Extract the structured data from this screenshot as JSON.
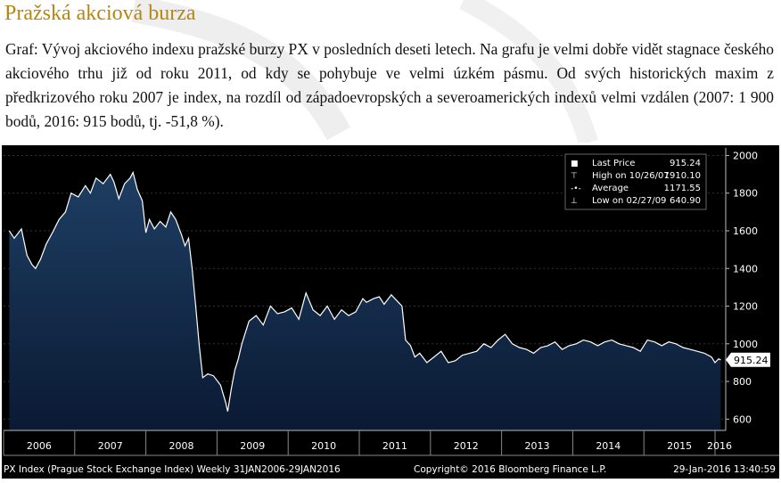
{
  "header": {
    "title": "Pražská akciová burza",
    "description": "Graf: Vývoj akciového indexu pražské burzy PX v posledních deseti letech. Na grafu je velmi dobře vidět stagnace českého akciového trhu již od roku 2011, od kdy se pohybuje ve velmi úzkém pásmu. Od svých historických maxim z předkrizového roku 2007 je index, na rozdíl od západoevropských a severoamerických indexů velmi vzdálen (2007: 1 900 bodů, 2016: 915 bodů, tj. -51,8 %)."
  },
  "footer": {
    "left": "PX Index (Prague Stock Exchange Index)  Weekly 31JAN2006-29JAN2016",
    "center": "Copyright© 2016 Bloomberg Finance L.P.",
    "right": "29-Jan-2016 13:40:59"
  },
  "colors": {
    "background": "#000000",
    "area_top": "#1e3e63",
    "area_bottom": "#0a1a33",
    "line": "#ffffff",
    "title": "#b8860b"
  },
  "chart_data": {
    "type": "area",
    "x_ticks": [
      "2006",
      "2007",
      "2008",
      "2009",
      "2010",
      "2011",
      "2012",
      "2013",
      "2014",
      "2015",
      "2016"
    ],
    "y_ticks": [
      600,
      800,
      1000,
      1200,
      1400,
      1600,
      1800,
      2000
    ],
    "ylim": [
      540,
      2040
    ],
    "last_value_label": "915.24",
    "legend": [
      {
        "label": "Last Price",
        "value": "915.24"
      },
      {
        "label": "High on 10/26/07",
        "value": "1910.10"
      },
      {
        "label": "Average",
        "value": "1171.55"
      },
      {
        "label": "Low on 02/27/09",
        "value": "640.90"
      }
    ],
    "series": [
      {
        "x": [
          2006.08,
          2006.15,
          2006.25,
          2006.33,
          2006.4,
          2006.45,
          2006.52,
          2006.6,
          2006.7,
          2006.78,
          2006.87,
          2006.95,
          2007.05,
          2007.15,
          2007.22,
          2007.3,
          2007.4,
          2007.5,
          2007.55,
          2007.62,
          2007.7,
          2007.78,
          2007.82,
          2007.88,
          2007.95,
          2008.0,
          2008.05,
          2008.12,
          2008.2,
          2008.28,
          2008.35,
          2008.42,
          2008.5,
          2008.55,
          2008.6,
          2008.65,
          2008.7,
          2008.75,
          2008.8,
          2008.87,
          2008.95,
          2009.05,
          2009.12,
          2009.15,
          2009.2,
          2009.25,
          2009.3,
          2009.35,
          2009.45,
          2009.55,
          2009.65,
          2009.75,
          2009.85,
          2009.95,
          2010.05,
          2010.15,
          2010.25,
          2010.35,
          2010.45,
          2010.55,
          2010.65,
          2010.75,
          2010.85,
          2010.95,
          2011.05,
          2011.1,
          2011.15,
          2011.2,
          2011.28,
          2011.35,
          2011.45,
          2011.55,
          2011.6,
          2011.65,
          2011.72,
          2011.78,
          2011.85,
          2011.95,
          2012.05,
          2012.15,
          2012.25,
          2012.35,
          2012.45,
          2012.55,
          2012.65,
          2012.75,
          2012.85,
          2012.95,
          2013.05,
          2013.15,
          2013.25,
          2013.35,
          2013.45,
          2013.55,
          2013.65,
          2013.75,
          2013.85,
          2013.95,
          2014.05,
          2014.15,
          2014.25,
          2014.35,
          2014.45,
          2014.55,
          2014.65,
          2014.75,
          2014.85,
          2014.95,
          2015.05,
          2015.15,
          2015.25,
          2015.35,
          2015.45,
          2015.55,
          2015.65,
          2015.75,
          2015.85,
          2015.95,
          2016.0,
          2016.05,
          2016.08
        ],
        "y": [
          1600,
          1560,
          1610,
          1470,
          1420,
          1400,
          1450,
          1530,
          1600,
          1660,
          1700,
          1800,
          1780,
          1840,
          1800,
          1880,
          1850,
          1900,
          1860,
          1770,
          1850,
          1880,
          1910,
          1820,
          1760,
          1590,
          1660,
          1610,
          1650,
          1620,
          1700,
          1660,
          1580,
          1520,
          1560,
          1400,
          1200,
          990,
          820,
          840,
          830,
          780,
          690,
          641,
          760,
          860,
          920,
          1000,
          1120,
          1150,
          1100,
          1200,
          1160,
          1170,
          1190,
          1130,
          1270,
          1180,
          1150,
          1200,
          1130,
          1180,
          1150,
          1170,
          1240,
          1220,
          1230,
          1240,
          1250,
          1210,
          1260,
          1220,
          1200,
          1020,
          990,
          930,
          950,
          900,
          930,
          960,
          900,
          910,
          940,
          950,
          960,
          1000,
          980,
          1020,
          1050,
          1000,
          980,
          970,
          950,
          980,
          990,
          1010,
          970,
          990,
          1000,
          1020,
          1010,
          990,
          1010,
          1020,
          1000,
          990,
          980,
          960,
          1020,
          1010,
          990,
          1010,
          1000,
          980,
          970,
          960,
          950,
          930,
          900,
          920,
          915
        ]
      }
    ]
  }
}
